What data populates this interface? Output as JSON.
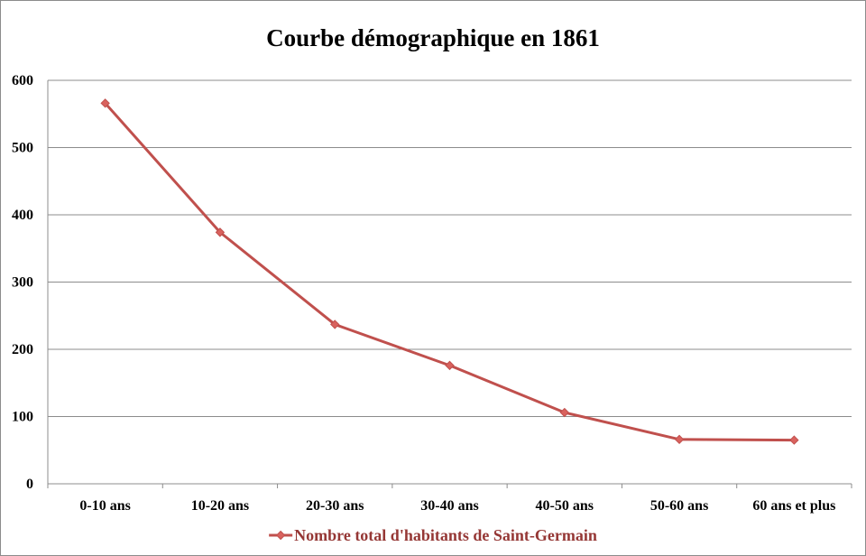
{
  "chart_data": {
    "type": "line",
    "title": "Courbe démographique en 1861",
    "xlabel": "",
    "ylabel": "",
    "categories": [
      "0-10 ans",
      "10-20 ans",
      "20-30 ans",
      "30-40 ans",
      "40-50 ans",
      "50-60 ans",
      "60 ans et plus"
    ],
    "series": [
      {
        "name": "Nombre total d'habitants de Saint-Germain",
        "values": [
          566,
          374,
          237,
          176,
          106,
          66,
          65
        ]
      }
    ],
    "ylim": [
      0,
      600
    ],
    "yticks": [
      0,
      100,
      200,
      300,
      400,
      500,
      600
    ],
    "grid": true,
    "legend_position": "bottom",
    "colors": {
      "series": "#c0504d",
      "marker": "#d9625e",
      "grid": "#8c8c8c",
      "axis": "#8c8c8c",
      "legend_text": "#953735"
    }
  }
}
